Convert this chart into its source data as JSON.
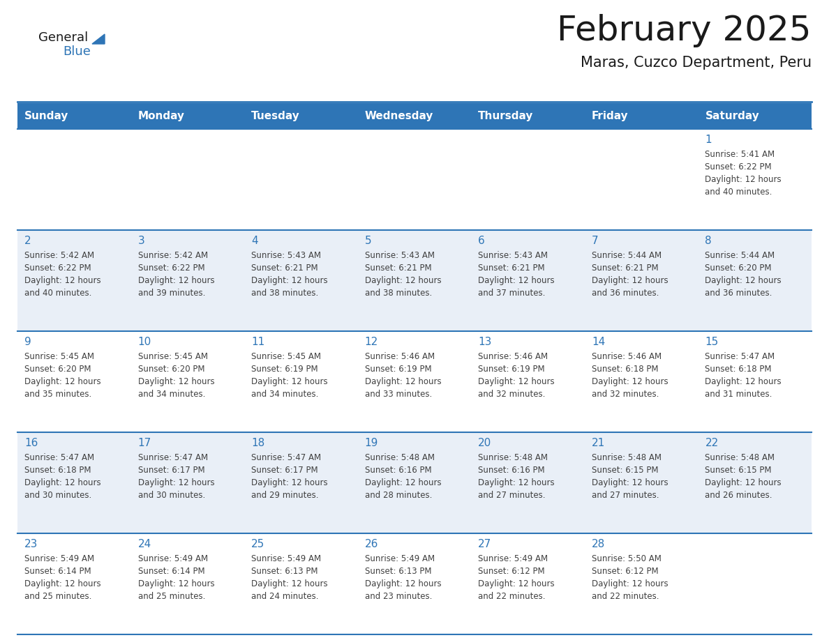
{
  "title": "February 2025",
  "subtitle": "Maras, Cuzco Department, Peru",
  "days_of_week": [
    "Sunday",
    "Monday",
    "Tuesday",
    "Wednesday",
    "Thursday",
    "Friday",
    "Saturday"
  ],
  "header_bg": "#2E75B6",
  "header_text_color": "#FFFFFF",
  "row_odd_bg": "#FFFFFF",
  "row_even_bg": "#E9EFF7",
  "cell_border_color": "#2E75B6",
  "day_number_color": "#2E75B6",
  "info_text_color": "#404040",
  "title_color": "#1a1a1a",
  "subtitle_color": "#1a1a1a",
  "logo_general_color": "#1a1a1a",
  "logo_blue_color": "#2E75B6",
  "weeks": [
    [
      {
        "day": null,
        "info": null
      },
      {
        "day": null,
        "info": null
      },
      {
        "day": null,
        "info": null
      },
      {
        "day": null,
        "info": null
      },
      {
        "day": null,
        "info": null
      },
      {
        "day": null,
        "info": null
      },
      {
        "day": 1,
        "info": "Sunrise: 5:41 AM\nSunset: 6:22 PM\nDaylight: 12 hours\nand 40 minutes."
      }
    ],
    [
      {
        "day": 2,
        "info": "Sunrise: 5:42 AM\nSunset: 6:22 PM\nDaylight: 12 hours\nand 40 minutes."
      },
      {
        "day": 3,
        "info": "Sunrise: 5:42 AM\nSunset: 6:22 PM\nDaylight: 12 hours\nand 39 minutes."
      },
      {
        "day": 4,
        "info": "Sunrise: 5:43 AM\nSunset: 6:21 PM\nDaylight: 12 hours\nand 38 minutes."
      },
      {
        "day": 5,
        "info": "Sunrise: 5:43 AM\nSunset: 6:21 PM\nDaylight: 12 hours\nand 38 minutes."
      },
      {
        "day": 6,
        "info": "Sunrise: 5:43 AM\nSunset: 6:21 PM\nDaylight: 12 hours\nand 37 minutes."
      },
      {
        "day": 7,
        "info": "Sunrise: 5:44 AM\nSunset: 6:21 PM\nDaylight: 12 hours\nand 36 minutes."
      },
      {
        "day": 8,
        "info": "Sunrise: 5:44 AM\nSunset: 6:20 PM\nDaylight: 12 hours\nand 36 minutes."
      }
    ],
    [
      {
        "day": 9,
        "info": "Sunrise: 5:45 AM\nSunset: 6:20 PM\nDaylight: 12 hours\nand 35 minutes."
      },
      {
        "day": 10,
        "info": "Sunrise: 5:45 AM\nSunset: 6:20 PM\nDaylight: 12 hours\nand 34 minutes."
      },
      {
        "day": 11,
        "info": "Sunrise: 5:45 AM\nSunset: 6:19 PM\nDaylight: 12 hours\nand 34 minutes."
      },
      {
        "day": 12,
        "info": "Sunrise: 5:46 AM\nSunset: 6:19 PM\nDaylight: 12 hours\nand 33 minutes."
      },
      {
        "day": 13,
        "info": "Sunrise: 5:46 AM\nSunset: 6:19 PM\nDaylight: 12 hours\nand 32 minutes."
      },
      {
        "day": 14,
        "info": "Sunrise: 5:46 AM\nSunset: 6:18 PM\nDaylight: 12 hours\nand 32 minutes."
      },
      {
        "day": 15,
        "info": "Sunrise: 5:47 AM\nSunset: 6:18 PM\nDaylight: 12 hours\nand 31 minutes."
      }
    ],
    [
      {
        "day": 16,
        "info": "Sunrise: 5:47 AM\nSunset: 6:18 PM\nDaylight: 12 hours\nand 30 minutes."
      },
      {
        "day": 17,
        "info": "Sunrise: 5:47 AM\nSunset: 6:17 PM\nDaylight: 12 hours\nand 30 minutes."
      },
      {
        "day": 18,
        "info": "Sunrise: 5:47 AM\nSunset: 6:17 PM\nDaylight: 12 hours\nand 29 minutes."
      },
      {
        "day": 19,
        "info": "Sunrise: 5:48 AM\nSunset: 6:16 PM\nDaylight: 12 hours\nand 28 minutes."
      },
      {
        "day": 20,
        "info": "Sunrise: 5:48 AM\nSunset: 6:16 PM\nDaylight: 12 hours\nand 27 minutes."
      },
      {
        "day": 21,
        "info": "Sunrise: 5:48 AM\nSunset: 6:15 PM\nDaylight: 12 hours\nand 27 minutes."
      },
      {
        "day": 22,
        "info": "Sunrise: 5:48 AM\nSunset: 6:15 PM\nDaylight: 12 hours\nand 26 minutes."
      }
    ],
    [
      {
        "day": 23,
        "info": "Sunrise: 5:49 AM\nSunset: 6:14 PM\nDaylight: 12 hours\nand 25 minutes."
      },
      {
        "day": 24,
        "info": "Sunrise: 5:49 AM\nSunset: 6:14 PM\nDaylight: 12 hours\nand 25 minutes."
      },
      {
        "day": 25,
        "info": "Sunrise: 5:49 AM\nSunset: 6:13 PM\nDaylight: 12 hours\nand 24 minutes."
      },
      {
        "day": 26,
        "info": "Sunrise: 5:49 AM\nSunset: 6:13 PM\nDaylight: 12 hours\nand 23 minutes."
      },
      {
        "day": 27,
        "info": "Sunrise: 5:49 AM\nSunset: 6:12 PM\nDaylight: 12 hours\nand 22 minutes."
      },
      {
        "day": 28,
        "info": "Sunrise: 5:50 AM\nSunset: 6:12 PM\nDaylight: 12 hours\nand 22 minutes."
      },
      {
        "day": null,
        "info": null
      }
    ]
  ],
  "num_weeks": 5,
  "num_cols": 7
}
